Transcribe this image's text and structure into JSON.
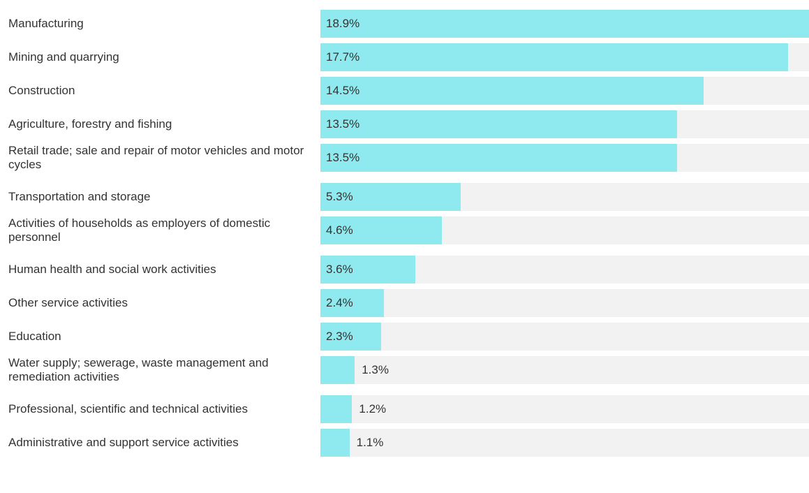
{
  "chart_data": {
    "type": "bar",
    "orientation": "horizontal",
    "categories": [
      "Manufacturing",
      "Mining and quarrying",
      "Construction",
      "Agriculture, forestry and fishing",
      "Retail trade; sale and repair of motor vehicles and motor cycles",
      "Transportation and storage",
      "Activities of households as employers of domestic personnel",
      "Human health and social work activities",
      "Other service activities",
      "Education",
      "Water supply; sewerage, waste management and remediation activities",
      "Professional, scientific and technical activities",
      "Administrative and support service activities"
    ],
    "values": [
      18.9,
      17.7,
      14.5,
      13.5,
      13.5,
      5.3,
      4.6,
      3.6,
      2.4,
      2.3,
      1.3,
      1.2,
      1.1
    ],
    "value_labels": [
      "18.9%",
      "17.7%",
      "14.5%",
      "13.5%",
      "13.5%",
      "5.3%",
      "4.6%",
      "3.6%",
      "2.4%",
      "2.3%",
      "1.3%",
      "1.2%",
      "1.1%"
    ],
    "color": "#8eeaee",
    "track_color": "#f2f2f2",
    "xlim": [
      0,
      18.5
    ]
  }
}
